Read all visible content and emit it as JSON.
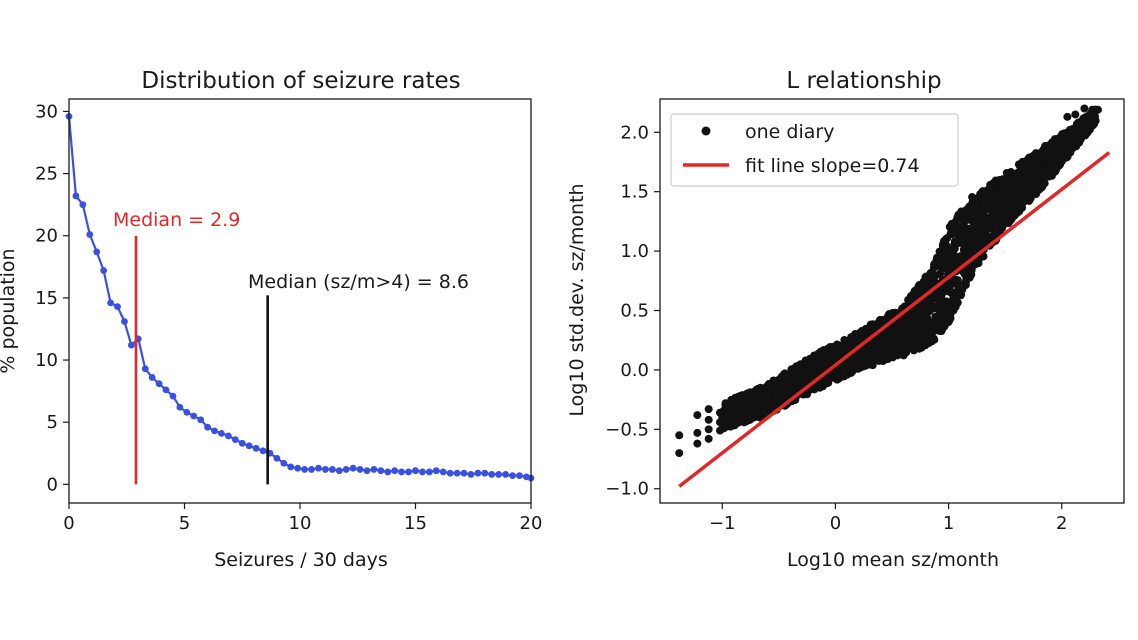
{
  "chart_data": [
    {
      "type": "line",
      "title": "Distribution of seizure rates",
      "xlabel": "Seizures / 30 days",
      "ylabel": "% population",
      "xlim": [
        0,
        20
      ],
      "ylim": [
        -1.5,
        31
      ],
      "xticks": [
        0,
        5,
        10,
        15,
        20
      ],
      "yticks": [
        0,
        5,
        10,
        15,
        20,
        25,
        30
      ],
      "series": [
        {
          "name": "distribution",
          "color": "#3a50e0",
          "x": [
            0,
            0.3,
            0.6,
            0.9,
            1.2,
            1.5,
            1.8,
            2.1,
            2.4,
            2.7,
            3.0,
            3.3,
            3.6,
            3.9,
            4.2,
            4.5,
            4.8,
            5.1,
            5.4,
            5.7,
            6.0,
            6.3,
            6.6,
            6.9,
            7.2,
            7.5,
            7.8,
            8.1,
            8.4,
            8.7,
            9.0,
            9.3,
            9.6,
            9.9,
            10.2,
            10.5,
            10.8,
            11.1,
            11.4,
            11.7,
            12.0,
            12.3,
            12.6,
            12.9,
            13.2,
            13.5,
            13.8,
            14.1,
            14.4,
            14.7,
            15.0,
            15.3,
            15.6,
            15.9,
            16.2,
            16.5,
            16.8,
            17.1,
            17.4,
            17.7,
            18.0,
            18.3,
            18.6,
            18.9,
            19.2,
            19.5,
            19.8,
            20.0
          ],
          "y": [
            29.6,
            23.2,
            22.5,
            20.1,
            18.7,
            17.2,
            14.6,
            14.3,
            13.1,
            11.2,
            11.7,
            9.3,
            8.6,
            8.1,
            7.6,
            7.1,
            6.2,
            5.8,
            5.5,
            5.2,
            4.6,
            4.3,
            4.1,
            3.9,
            3.6,
            3.3,
            3.1,
            2.9,
            2.7,
            2.5,
            2.1,
            1.7,
            1.4,
            1.3,
            1.2,
            1.2,
            1.3,
            1.2,
            1.2,
            1.1,
            1.2,
            1.3,
            1.2,
            1.1,
            1.2,
            1.1,
            1.0,
            1.1,
            1.0,
            1.0,
            1.1,
            1.0,
            1.0,
            1.1,
            1.0,
            0.9,
            0.9,
            0.9,
            0.8,
            0.9,
            0.9,
            0.8,
            0.8,
            0.8,
            0.7,
            0.7,
            0.6,
            0.5
          ]
        }
      ],
      "vlines": [
        {
          "x": 2.9,
          "y_from": 0,
          "y_to": 20,
          "color": "#e02828",
          "label": "Median = 2.9"
        },
        {
          "x": 8.6,
          "y_from": 0,
          "y_to": 15.2,
          "color": "#111111",
          "label": "Median (sz/m>4) = 8.6"
        }
      ]
    },
    {
      "type": "scatter",
      "title": "L relationship",
      "xlabel": "Log10 mean sz/month",
      "ylabel": "Log10 std.dev. sz/month",
      "xlim": [
        -1.55,
        2.55
      ],
      "ylim": [
        -1.12,
        2.28
      ],
      "xticks": [
        -1,
        0,
        1,
        2
      ],
      "xtick_labels": [
        "−1",
        "0",
        "1",
        "2"
      ],
      "yticks": [
        -1.0,
        -0.5,
        0.0,
        0.5,
        1.0,
        1.5,
        2.0
      ],
      "ytick_labels": [
        "−1.0",
        "−0.5",
        "0.0",
        "0.5",
        "1.0",
        "1.5",
        "2.0"
      ],
      "legend_position": "top-left",
      "legend": [
        "one diary",
        "fit line slope=0.74"
      ],
      "scatter_color": "#111111",
      "scatter_outliers": [
        [
          -1.38,
          -0.55
        ],
        [
          -1.38,
          -0.7
        ],
        [
          -1.22,
          -0.38
        ],
        [
          -1.22,
          -0.53
        ],
        [
          -1.22,
          -0.62
        ],
        [
          -1.12,
          -0.33
        ],
        [
          -1.12,
          -0.42
        ],
        [
          -1.12,
          -0.5
        ],
        [
          -1.12,
          -0.58
        ],
        [
          -1.02,
          -0.36
        ],
        [
          -1.02,
          -0.44
        ],
        [
          -1.02,
          -0.51
        ],
        [
          2.2,
          2.2
        ],
        [
          2.27,
          2.19
        ],
        [
          2.32,
          2.19
        ],
        [
          2.12,
          2.15
        ],
        [
          2.05,
          2.13
        ],
        [
          2.25,
          2.15
        ]
      ],
      "scatter_band": [
        [
          -1.0,
          -0.5,
          -0.28
        ],
        [
          -0.6,
          -0.38,
          -0.12
        ],
        [
          -0.2,
          -0.18,
          0.12
        ],
        [
          0.2,
          0.0,
          0.32
        ],
        [
          0.6,
          0.12,
          0.54
        ],
        [
          0.85,
          0.22,
          0.85
        ],
        [
          1.0,
          0.4,
          1.2
        ],
        [
          1.2,
          0.8,
          1.45
        ],
        [
          1.5,
          1.2,
          1.65
        ],
        [
          1.8,
          1.5,
          1.85
        ],
        [
          2.1,
          1.85,
          2.05
        ],
        [
          2.3,
          2.08,
          2.2
        ]
      ],
      "fit_line": {
        "x": [
          -1.38,
          2.42
        ],
        "y": [
          -0.98,
          1.83
        ],
        "slope": 0.74,
        "color": "#e02828"
      }
    }
  ]
}
